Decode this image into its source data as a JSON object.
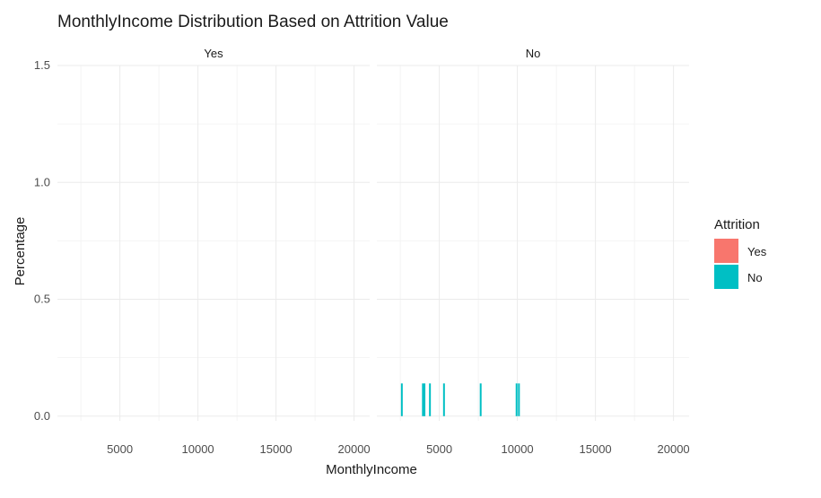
{
  "chart_data": {
    "type": "bar",
    "title": "MonthlyIncome Distribution Based on Attrition Value",
    "xlabel": "MonthlyIncome",
    "ylabel": "Percentage",
    "x_ticks": [
      "5000",
      "10000",
      "15000",
      "20000"
    ],
    "x_tick_values": [
      5000,
      10000,
      15000,
      20000
    ],
    "y_ticks": [
      "0.0",
      "0.5",
      "1.0",
      "1.5"
    ],
    "y_tick_values": [
      0,
      0.5,
      1.0,
      1.5
    ],
    "xlim": [
      1000,
      21000
    ],
    "ylim": [
      -0.02,
      1.5
    ],
    "grid": true,
    "legend": {
      "title": "Attrition",
      "position": "right",
      "entries": [
        {
          "label": "Yes",
          "color": "#F8766D"
        },
        {
          "label": "No",
          "color": "#00BFC4"
        }
      ]
    },
    "facets": [
      {
        "label": "Yes",
        "color": "#F8766D",
        "bars": []
      },
      {
        "label": "No",
        "color": "#00BFC4",
        "bars": [
          {
            "x": 2600,
            "y": 0.14
          },
          {
            "x": 3950,
            "y": 0.14
          },
          {
            "x": 4050,
            "y": 0.14
          },
          {
            "x": 4400,
            "y": 0.14
          },
          {
            "x": 5300,
            "y": 0.14
          },
          {
            "x": 7650,
            "y": 0.14
          },
          {
            "x": 9950,
            "y": 0.14
          },
          {
            "x": 10100,
            "y": 0.14
          }
        ]
      }
    ]
  }
}
